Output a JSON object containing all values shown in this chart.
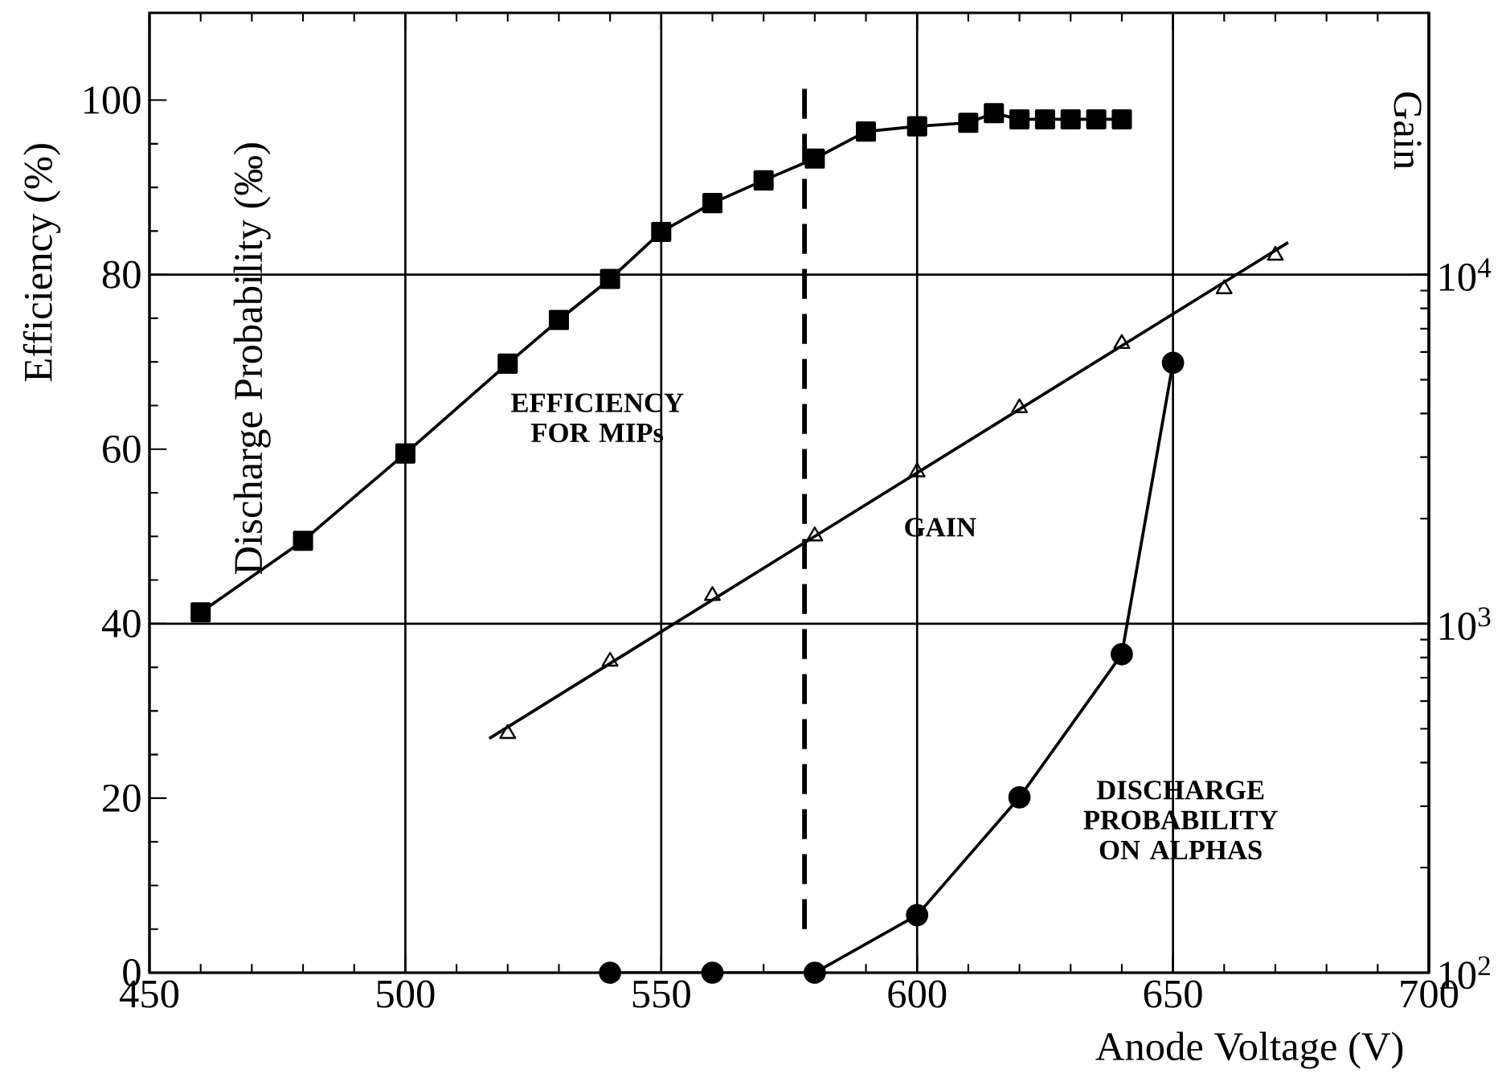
{
  "chart_data": {
    "type": "line",
    "xlabel": "Anode Voltage (V)",
    "ylabel": "Efficiency (%)",
    "y2label": "Gain",
    "xlim": [
      450,
      700
    ],
    "xticks": [
      450,
      500,
      550,
      600,
      650,
      700
    ],
    "ylim": [
      0,
      110
    ],
    "yticks": [
      0,
      20,
      40,
      60,
      80,
      100
    ],
    "y2lim": [
      100,
      56234
    ],
    "y2ticks": [
      {
        "value": 100,
        "label": "10$^{2}$"
      },
      {
        "value": 1000,
        "label": "10$^{3}$"
      },
      {
        "value": 10000,
        "label": "10$^{4}$"
      }
    ],
    "log": "y2",
    "grid": true,
    "series": [
      {
        "name": "EFFICIENCY FOR MIPs",
        "marker": "square",
        "color": "#000000",
        "x": [
          460,
          480,
          500,
          520,
          530,
          540,
          550,
          560,
          570,
          580,
          590,
          600,
          610,
          615,
          620,
          625,
          630,
          635,
          640
        ],
        "values": [
          41.3,
          49.5,
          59.5,
          69.8,
          74.8,
          79.5,
          84.9,
          88.2,
          90.8,
          93.3,
          96.4,
          97.0,
          97.4,
          98.5,
          97.8,
          97.8,
          97.8,
          97.8,
          97.8
        ]
      },
      {
        "name": "DISCHARGE PROBABILITY ON ALPHAS",
        "type": "line",
        "marker": "circle",
        "color": "#000000",
        "x": [
          540,
          560,
          580,
          600,
          620,
          640,
          650
        ],
        "values": [
          0,
          0,
          0,
          6.6,
          20.1,
          36.5,
          69.9
        ]
      },
      {
        "name": "GAIN",
        "type": "scatter",
        "marker": "triangle",
        "axis": "y2",
        "color": "#000000",
        "x": [
          520,
          540,
          560,
          580,
          600,
          620,
          640,
          660,
          670
        ],
        "values": [
          484,
          780,
          1203,
          1782,
          2719,
          4150,
          6341,
          9098,
          11350
        ]
      },
      {
        "type": "line",
        "marker": "none",
        "axis": "y2",
        "color": "#000000",
        "x": [
          516.4,
          672.5
        ],
        "values": [
          469,
          12360
        ]
      }
    ],
    "ref_lines": [
      {
        "axis": "x",
        "value": 578,
        "line_style": "dashed"
      }
    ],
    "annotations": [
      "Discharge Probability (‰)"
    ]
  }
}
